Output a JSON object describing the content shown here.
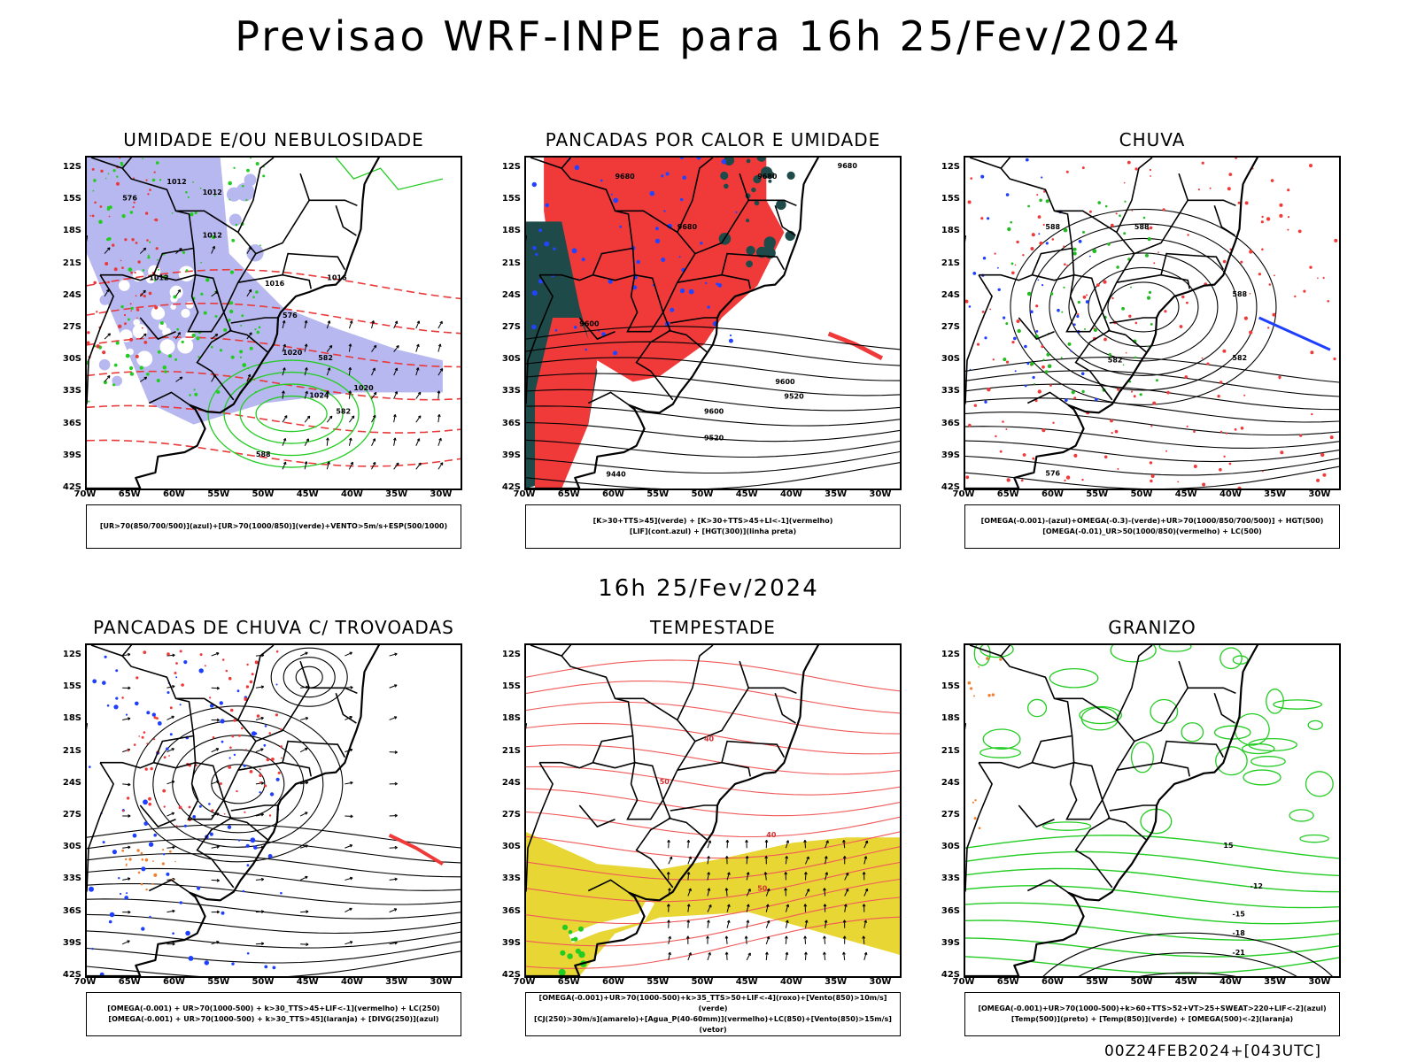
{
  "title": "Previsao WRF-INPE  para 16h 25/Fev/2024",
  "mid_title": "16h 25/Fev/2024",
  "footer": "00Z24FEB2024+[043UTC]",
  "lat_ticks": [
    "12S",
    "15S",
    "18S",
    "21S",
    "24S",
    "27S",
    "30S",
    "33S",
    "36S",
    "39S",
    "42S"
  ],
  "lon_ticks": [
    "70W",
    "65W",
    "60W",
    "55W",
    "50W",
    "45W",
    "40W",
    "35W",
    "30W"
  ],
  "colors": {
    "rain_red": "#f03a3a",
    "moisture_green": "#22cc22",
    "cloud_lavender": "#b3b3ee",
    "storm_yellow": "#e8d634",
    "dark_teal": "#1f4a4a",
    "blue": "#1f3fff",
    "orange": "#f08030"
  },
  "panels": [
    {
      "title": "UMIDADE E/OU NEBULOSIDADE",
      "legend": [
        "[UR>70(850/700/500)](azul)+[UR>70(1000/850)](verde)+VENTO>5m/s+ESP(500/1000)"
      ],
      "contour_labels": [
        "1012",
        "1012",
        "1012",
        "1012",
        "1016",
        "1016",
        "1020",
        "1020",
        "1024",
        "576",
        "576",
        "582",
        "582",
        "588"
      ]
    },
    {
      "title": "PANCADAS POR CALOR E UMIDADE",
      "legend": [
        "[K>30+TTS>45](verde) + [K>30+TTS>45+LI<-1](vermelho)",
        "[LIF](cont.azul) + [HGT(300)](linha preta)"
      ],
      "contour_labels": [
        "9680",
        "9680",
        "9680",
        "9600",
        "9600",
        "9520",
        "9520",
        "9440",
        "9680",
        "9600"
      ]
    },
    {
      "title": "CHUVA",
      "legend": [
        "[OMEGA(-0.001)-(azul)+OMEGA(-0.3)-(verde)+UR>70(1000/850/700/500)] + HGT(500)",
        "[OMEGA(-0.01)_UR>50(1000/850)(vermelho) + LC(500)"
      ],
      "contour_labels": [
        "588",
        "588",
        "588",
        "582",
        "576",
        "582"
      ]
    },
    {
      "title": "PANCADAS DE CHUVA C/ TROVOADAS",
      "legend": [
        "[OMEGA(-0.001) + UR>70(1000-500) + k>30_TTS>45+LIF<-1](vermelho) + LC(250)",
        "[OMEGA(-0.001) + UR>70(1000-500) + k>30_TTS>45](laranja) + [DIVG(250)](azul)"
      ]
    },
    {
      "title": "TEMPESTADE",
      "legend": [
        "[OMEGA(-0.001)+UR>70(1000-500)+k>35_TTS>50+LIF<-4](roxo)+[Vento(850)>10m/s](verde)",
        "[CJ(250)>30m/s](amarelo)+[Agua_P(40-60mm)](vermelho)+LC(850)+[Vento(850)>15m/s](vetor)"
      ],
      "contour_labels": [
        "40",
        "50",
        "40",
        "50"
      ]
    },
    {
      "title": "GRANIZO",
      "legend": [
        "[OMEGA(-0.001)+UR>70(1000-500)+k>60+TTS>52+VT>25+SWEAT>220+LIF<-2](azul)",
        "[Temp(500)](preto) + [Temp(850)](verde) + [OMEGA(500)<-2](laranja)"
      ],
      "contour_labels": [
        "-12",
        "-15",
        "-18",
        "-21",
        "15"
      ]
    }
  ]
}
